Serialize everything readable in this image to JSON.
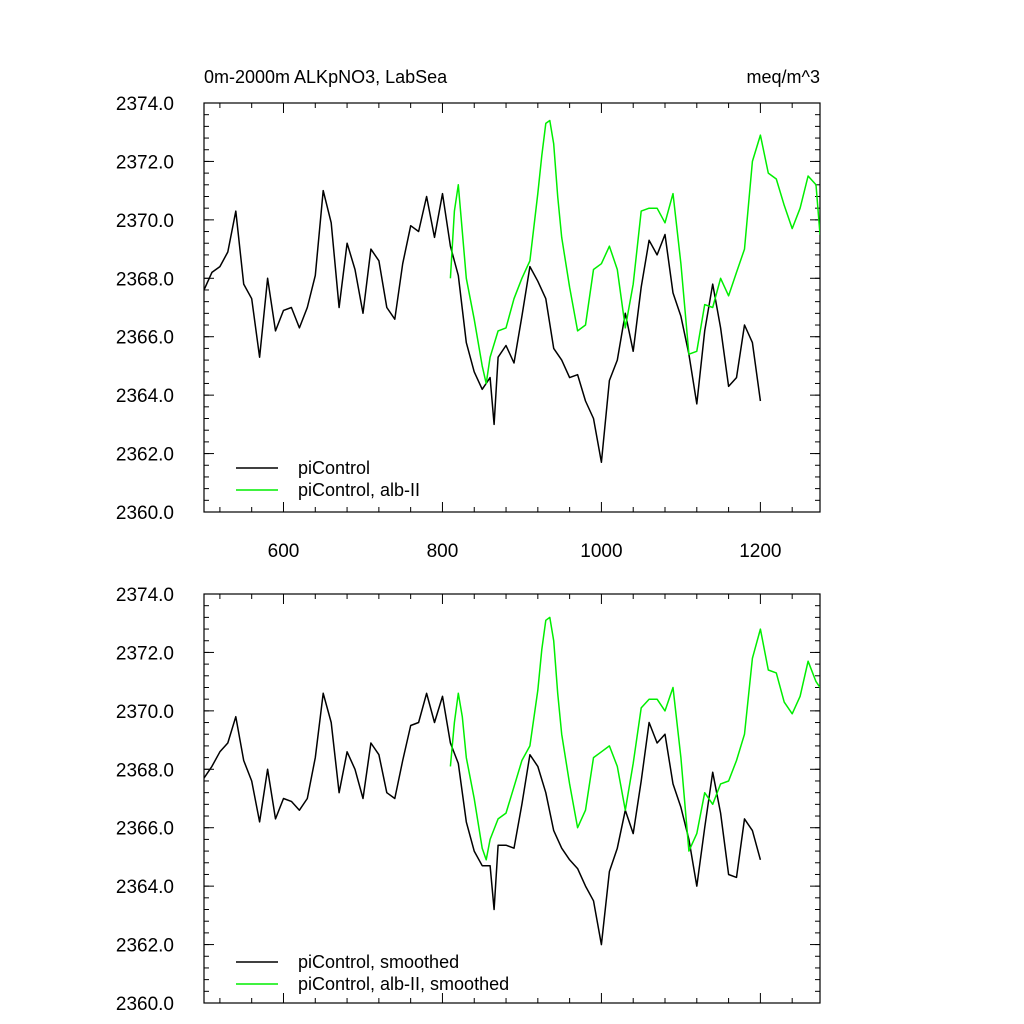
{
  "chart_data": [
    {
      "type": "line",
      "title": "0m-2000m ALKpNO3, LabSea",
      "units": "meq/m^3",
      "xlim": [
        500,
        1275
      ],
      "ylim": [
        2360,
        2374
      ],
      "x_major_ticks": [
        600,
        800,
        1000,
        1200
      ],
      "x_tick_labels": [
        "600",
        "800",
        "1000",
        "1200"
      ],
      "y_major_ticks": [
        2360,
        2362,
        2364,
        2366,
        2368,
        2370,
        2372,
        2374
      ],
      "y_tick_labels": [
        "2360.0",
        "2362.0",
        "2364.0",
        "2366.0",
        "2368.0",
        "2370.0",
        "2372.0",
        "2374.0"
      ],
      "legend_position": "bottom-left",
      "series": [
        {
          "name": "piControl",
          "color": "#000000",
          "x": [
            500,
            510,
            520,
            530,
            540,
            550,
            560,
            570,
            580,
            590,
            600,
            610,
            620,
            630,
            640,
            650,
            660,
            670,
            680,
            690,
            700,
            710,
            720,
            730,
            740,
            750,
            760,
            770,
            780,
            790,
            800,
            810,
            820,
            830,
            840,
            850,
            860,
            865,
            870,
            880,
            890,
            900,
            910,
            920,
            930,
            940,
            950,
            960,
            970,
            980,
            990,
            1000,
            1010,
            1020,
            1030,
            1040,
            1050,
            1060,
            1070,
            1080,
            1090,
            1100,
            1110,
            1120,
            1130,
            1140,
            1150,
            1160,
            1170,
            1180,
            1190,
            1200
          ],
          "values": [
            2367.6,
            2368.2,
            2368.4,
            2368.9,
            2370.3,
            2367.8,
            2367.3,
            2365.3,
            2368.0,
            2366.2,
            2366.9,
            2367.0,
            2366.3,
            2367.0,
            2368.1,
            2371.0,
            2369.9,
            2367.0,
            2369.2,
            2368.3,
            2366.8,
            2369.0,
            2368.6,
            2367.0,
            2366.6,
            2368.5,
            2369.8,
            2369.6,
            2370.8,
            2369.4,
            2370.9,
            2369.1,
            2368.1,
            2365.8,
            2364.8,
            2364.2,
            2364.6,
            2363.0,
            2365.3,
            2365.7,
            2365.1,
            2366.7,
            2368.4,
            2367.9,
            2367.3,
            2365.6,
            2365.2,
            2364.6,
            2364.7,
            2363.8,
            2363.2,
            2361.7,
            2364.5,
            2365.2,
            2366.8,
            2365.5,
            2367.7,
            2369.3,
            2368.8,
            2369.5,
            2367.5,
            2366.7,
            2365.4,
            2363.7,
            2366.2,
            2367.8,
            2366.3,
            2364.3,
            2364.6,
            2366.4,
            2365.8,
            2363.8
          ]
        },
        {
          "name": "piControl, alb-II",
          "color": "#00ee00",
          "x": [
            810,
            815,
            820,
            825,
            830,
            840,
            850,
            855,
            860,
            870,
            880,
            890,
            900,
            910,
            920,
            925,
            930,
            935,
            940,
            945,
            950,
            960,
            970,
            980,
            990,
            1000,
            1010,
            1020,
            1030,
            1040,
            1050,
            1060,
            1070,
            1080,
            1090,
            1100,
            1110,
            1120,
            1130,
            1140,
            1150,
            1160,
            1170,
            1180,
            1190,
            1200,
            1210,
            1220,
            1230,
            1240,
            1250,
            1260,
            1270,
            1275
          ],
          "values": [
            2368.0,
            2370.3,
            2371.2,
            2369.6,
            2368.0,
            2366.6,
            2365.0,
            2364.4,
            2365.3,
            2366.2,
            2366.3,
            2367.3,
            2368.0,
            2368.6,
            2370.9,
            2372.2,
            2373.3,
            2373.4,
            2372.6,
            2370.8,
            2369.4,
            2367.7,
            2366.2,
            2366.4,
            2368.3,
            2368.5,
            2369.1,
            2368.3,
            2366.3,
            2367.8,
            2370.3,
            2370.4,
            2370.4,
            2369.9,
            2370.9,
            2368.5,
            2365.4,
            2365.5,
            2367.1,
            2367.0,
            2368.0,
            2367.4,
            2368.2,
            2369.0,
            2372.0,
            2372.9,
            2371.6,
            2371.4,
            2370.5,
            2369.7,
            2370.4,
            2371.5,
            2371.2,
            2369.5
          ]
        }
      ]
    },
    {
      "type": "line",
      "xlim": [
        500,
        1275
      ],
      "ylim": [
        2360,
        2374
      ],
      "y_major_ticks": [
        2360,
        2362,
        2364,
        2366,
        2368,
        2370,
        2372,
        2374
      ],
      "y_tick_labels": [
        "2360.0",
        "2362.0",
        "2364.0",
        "2366.0",
        "2368.0",
        "2370.0",
        "2372.0",
        "2374.0"
      ],
      "legend_position": "bottom-left",
      "series": [
        {
          "name": "piControl, smoothed",
          "color": "#000000",
          "x": [
            500,
            510,
            520,
            530,
            540,
            550,
            560,
            570,
            580,
            590,
            600,
            610,
            620,
            630,
            640,
            650,
            660,
            670,
            680,
            690,
            700,
            710,
            720,
            730,
            740,
            750,
            760,
            770,
            780,
            790,
            800,
            810,
            820,
            830,
            840,
            850,
            860,
            865,
            870,
            880,
            890,
            900,
            910,
            920,
            930,
            940,
            950,
            960,
            970,
            980,
            990,
            1000,
            1010,
            1020,
            1030,
            1040,
            1050,
            1060,
            1070,
            1080,
            1090,
            1100,
            1110,
            1120,
            1130,
            1140,
            1150,
            1160,
            1170,
            1180,
            1190,
            1200
          ],
          "values": [
            2367.7,
            2368.1,
            2368.6,
            2368.9,
            2369.8,
            2368.3,
            2367.6,
            2366.2,
            2368.0,
            2366.3,
            2367.0,
            2366.9,
            2366.6,
            2367.0,
            2368.4,
            2370.6,
            2369.6,
            2367.2,
            2368.6,
            2368.0,
            2367.0,
            2368.9,
            2368.5,
            2367.2,
            2367.0,
            2368.3,
            2369.5,
            2369.6,
            2370.6,
            2369.6,
            2370.5,
            2368.9,
            2368.2,
            2366.2,
            2365.2,
            2364.7,
            2364.7,
            2363.2,
            2365.4,
            2365.4,
            2365.3,
            2366.8,
            2368.5,
            2368.1,
            2367.2,
            2365.9,
            2365.3,
            2364.9,
            2364.6,
            2364.0,
            2363.5,
            2362.0,
            2364.5,
            2365.3,
            2366.6,
            2365.8,
            2367.6,
            2369.6,
            2368.9,
            2369.2,
            2367.5,
            2366.7,
            2365.6,
            2364.0,
            2366.0,
            2367.9,
            2366.5,
            2364.4,
            2364.3,
            2366.3,
            2365.9,
            2364.9
          ]
        },
        {
          "name": "piControl, alb-II, smoothed",
          "color": "#00ee00",
          "x": [
            810,
            815,
            820,
            825,
            830,
            840,
            850,
            855,
            860,
            870,
            880,
            890,
            900,
            910,
            920,
            925,
            930,
            935,
            940,
            945,
            950,
            960,
            970,
            980,
            990,
            1000,
            1010,
            1020,
            1030,
            1040,
            1050,
            1060,
            1070,
            1080,
            1090,
            1100,
            1110,
            1120,
            1130,
            1140,
            1150,
            1160,
            1170,
            1180,
            1190,
            1200,
            1210,
            1220,
            1230,
            1240,
            1250,
            1260,
            1270,
            1275
          ],
          "values": [
            2368.1,
            2369.6,
            2370.6,
            2369.8,
            2368.4,
            2367.0,
            2365.3,
            2364.9,
            2365.6,
            2366.3,
            2366.5,
            2367.4,
            2368.3,
            2368.8,
            2370.7,
            2372.1,
            2373.1,
            2373.2,
            2372.4,
            2370.6,
            2369.2,
            2367.5,
            2366.0,
            2366.6,
            2368.4,
            2368.6,
            2368.8,
            2368.1,
            2366.6,
            2368.2,
            2370.1,
            2370.4,
            2370.4,
            2370.0,
            2370.8,
            2368.4,
            2365.2,
            2365.8,
            2367.2,
            2366.8,
            2367.5,
            2367.6,
            2368.3,
            2369.2,
            2371.8,
            2372.8,
            2371.4,
            2371.3,
            2370.3,
            2369.9,
            2370.5,
            2371.7,
            2371.0,
            2370.8
          ]
        }
      ]
    }
  ]
}
